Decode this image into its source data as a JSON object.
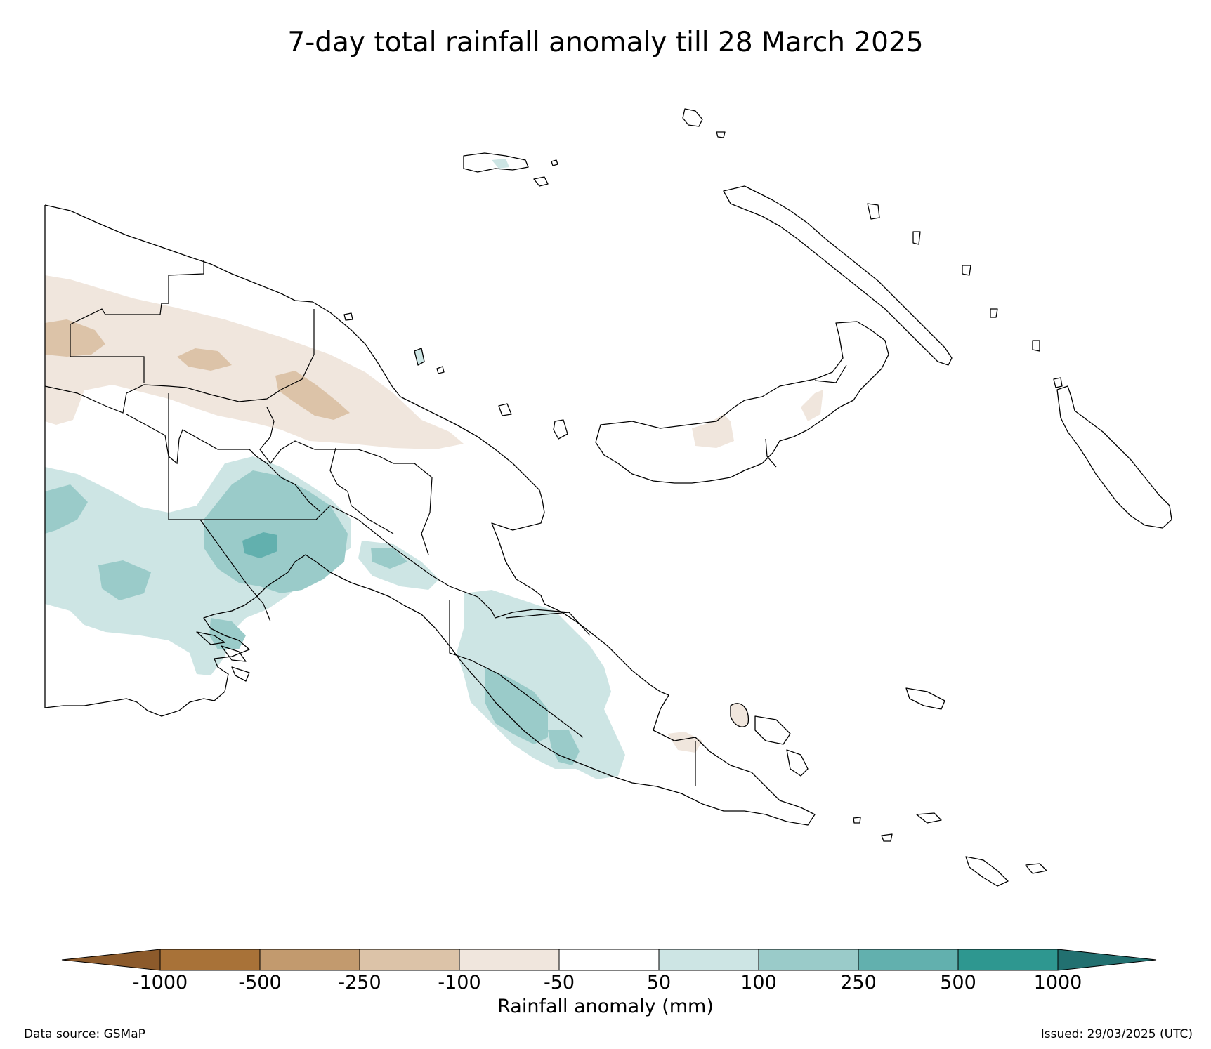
{
  "title": "7-day total rainfall anomaly till 28 March 2025",
  "colorbar": {
    "label": "Rainfall anomaly (mm)",
    "ticks": [
      "-1000",
      "-500",
      "-250",
      "-100",
      "-50",
      "50",
      "100",
      "250",
      "500",
      "1000"
    ],
    "below_color": "#8c5a2b",
    "above_color": "#227070",
    "bins": [
      {
        "from": "-1000",
        "to": "-500",
        "color": "#a87238"
      },
      {
        "from": "-500",
        "to": "-250",
        "color": "#c29a6e"
      },
      {
        "from": "-250",
        "to": "-100",
        "color": "#dcc3a8"
      },
      {
        "from": "-100",
        "to": "-50",
        "color": "#f0e6dd"
      },
      {
        "from": "-50",
        "to": "50",
        "color": "#ffffff"
      },
      {
        "from": "50",
        "to": "100",
        "color": "#cde5e4"
      },
      {
        "from": "100",
        "to": "250",
        "color": "#9acbc9"
      },
      {
        "from": "250",
        "to": "500",
        "color": "#62b0ae"
      },
      {
        "from": "500",
        "to": "1000",
        "color": "#2e9790"
      }
    ]
  },
  "footer": {
    "source": "Data source: GSMaP",
    "issued": "Issued: 29/03/2025 (UTC)"
  }
}
